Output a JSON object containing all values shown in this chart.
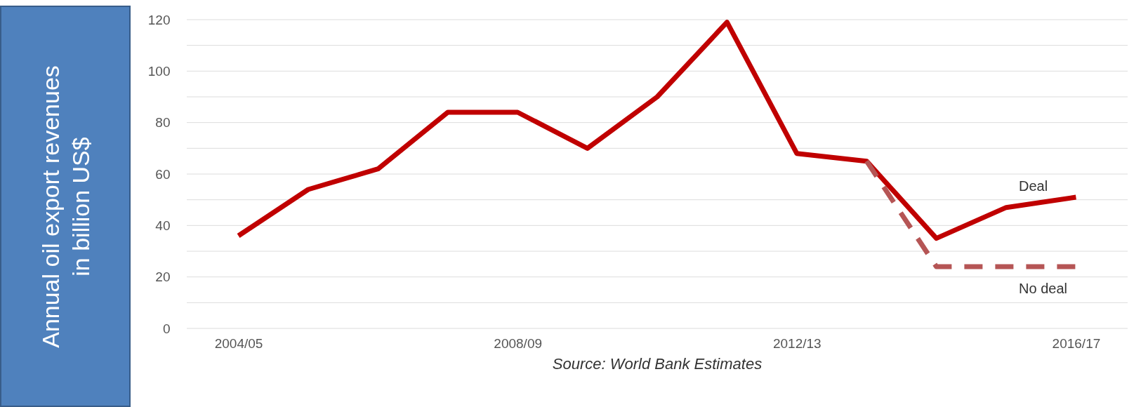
{
  "chart_data": {
    "type": "line",
    "ylabel": "Annual oil export revenues in billion US$",
    "categories": [
      "2004/05",
      null,
      null,
      null,
      "2008/09",
      null,
      null,
      null,
      "2012/13",
      null,
      null,
      null,
      "2016/17"
    ],
    "series": [
      {
        "name": "Deal",
        "color": "#c00000",
        "line_style": "solid",
        "values": [
          36,
          54,
          62,
          84,
          84,
          70,
          90,
          119,
          68,
          65,
          35,
          47,
          51
        ]
      },
      {
        "name": "No deal",
        "color": "#b55555",
        "line_style": "dashed",
        "values": [
          null,
          null,
          null,
          null,
          null,
          null,
          null,
          null,
          null,
          65,
          24,
          24,
          24
        ]
      }
    ],
    "ylim": [
      0,
      120
    ],
    "yticks": [
      0,
      {
        "value": 10,
        "label": null
      },
      20,
      {
        "value": 30,
        "label": null
      },
      40,
      {
        "value": 50,
        "label": null
      },
      60,
      {
        "value": 70,
        "label": null
      },
      80,
      {
        "value": 90,
        "label": null
      },
      100,
      {
        "value": 110,
        "label": null
      },
      120
    ],
    "grid": true,
    "marker": "none",
    "annotations": [
      "Source: World Bank Estimates"
    ]
  }
}
